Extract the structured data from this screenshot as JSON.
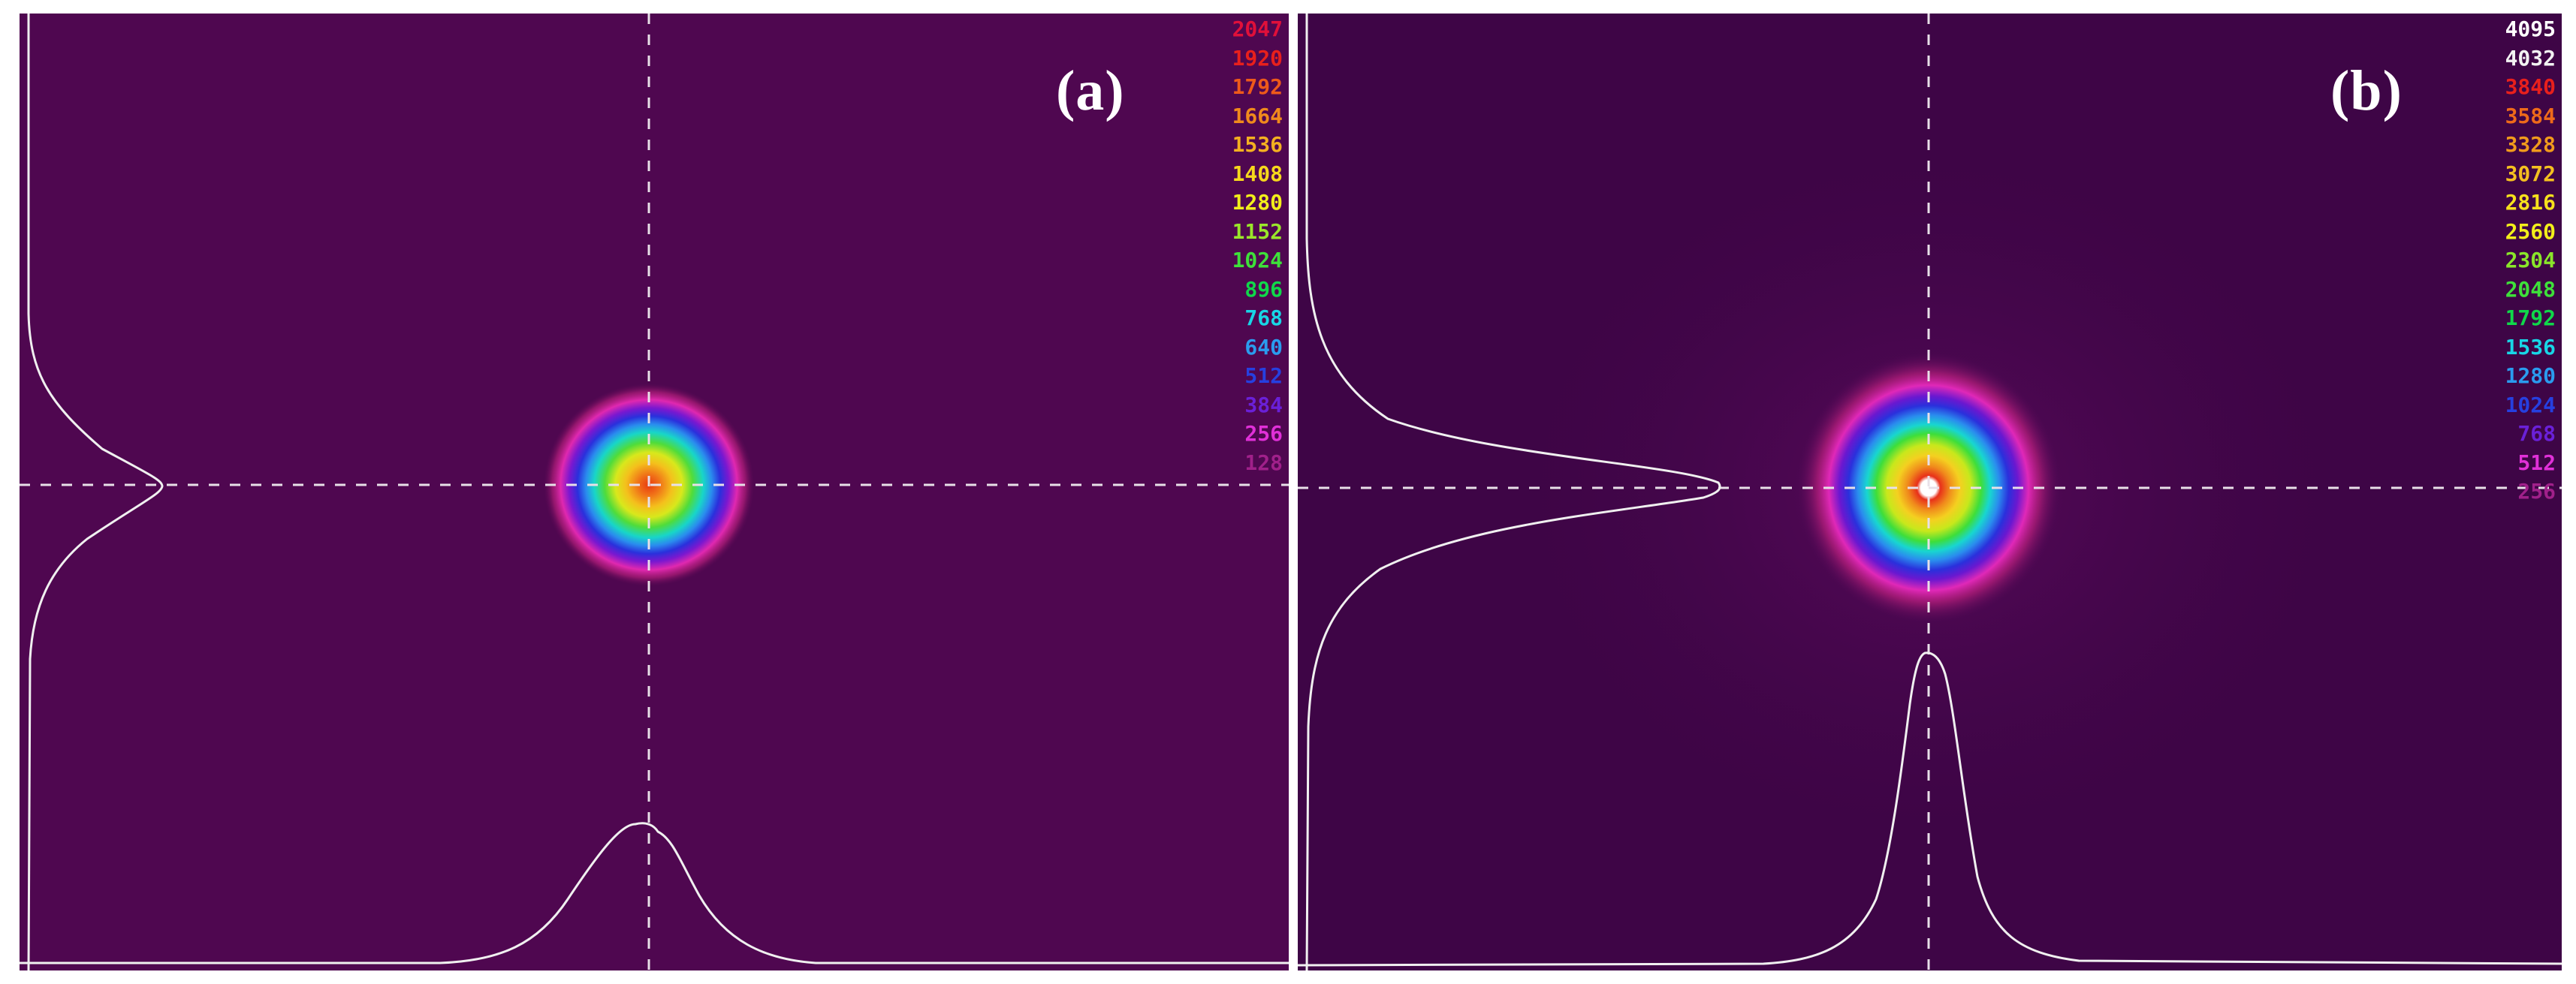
{
  "panels": [
    {
      "label": "(a)",
      "scale": [
        {
          "value": "2047",
          "color": "#e0103a"
        },
        {
          "value": "1920",
          "color": "#e8201c"
        },
        {
          "value": "1792",
          "color": "#ee5a1a"
        },
        {
          "value": "1664",
          "color": "#f08a1c"
        },
        {
          "value": "1536",
          "color": "#f4b020"
        },
        {
          "value": "1408",
          "color": "#f6d81c"
        },
        {
          "value": "1280",
          "color": "#f2ee1a"
        },
        {
          "value": "1152",
          "color": "#9ae62a"
        },
        {
          "value": "1024",
          "color": "#3ee03a"
        },
        {
          "value": "896",
          "color": "#10d84a"
        },
        {
          "value": "768",
          "color": "#18d6e6"
        },
        {
          "value": "640",
          "color": "#2a9cee"
        },
        {
          "value": "512",
          "color": "#2640e0"
        },
        {
          "value": "384",
          "color": "#6a20d8"
        },
        {
          "value": "256",
          "color": "#e030d8"
        },
        {
          "value": "128",
          "color": "#a0208a"
        }
      ]
    },
    {
      "label": "(b)",
      "scale": [
        {
          "value": "4095",
          "color": "#ffffff"
        },
        {
          "value": "4032",
          "color": "#f2f2f2"
        },
        {
          "value": "3840",
          "color": "#e8201c"
        },
        {
          "value": "3584",
          "color": "#ee6a1a"
        },
        {
          "value": "3328",
          "color": "#f09a1c"
        },
        {
          "value": "3072",
          "color": "#f4c020"
        },
        {
          "value": "2816",
          "color": "#f6e01c"
        },
        {
          "value": "2560",
          "color": "#f2ee1a"
        },
        {
          "value": "2304",
          "color": "#8ae62a"
        },
        {
          "value": "2048",
          "color": "#3ee03a"
        },
        {
          "value": "1792",
          "color": "#10d84a"
        },
        {
          "value": "1536",
          "color": "#18d6e6"
        },
        {
          "value": "1280",
          "color": "#2a9cee"
        },
        {
          "value": "1024",
          "color": "#2640e0"
        },
        {
          "value": "768",
          "color": "#6a20d8"
        },
        {
          "value": "512",
          "color": "#e030d8"
        },
        {
          "value": "256",
          "color": "#a0208a"
        }
      ]
    }
  ]
}
